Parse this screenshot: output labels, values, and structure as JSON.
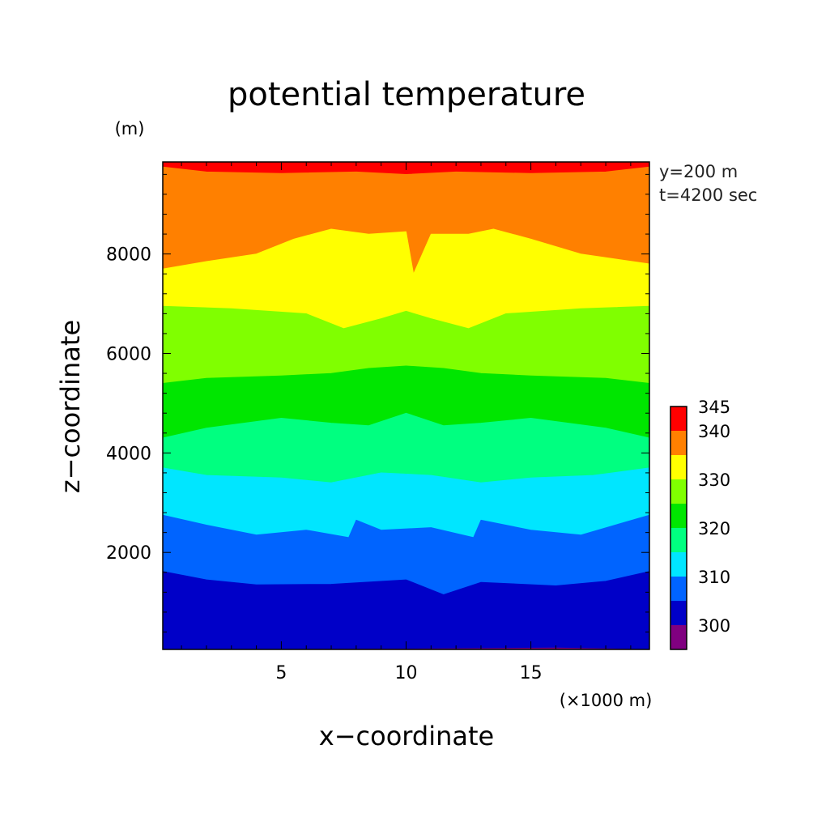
{
  "chart_data": {
    "type": "contour",
    "title": "potential temperature",
    "xlabel": "x−coordinate",
    "ylabel": "z−coordinate",
    "x_unit": "(×1000 m)",
    "y_unit": "(m)",
    "annotations": [
      "y=200 m",
      "t=4200 sec"
    ],
    "xlim": [
      0.25,
      19.75
    ],
    "ylim": [
      50,
      9850
    ],
    "x_ticks": [
      5,
      10,
      15
    ],
    "y_ticks": [
      2000,
      4000,
      6000,
      8000
    ],
    "legend_position": "right",
    "colorbar": {
      "labels": [
        "345",
        "340",
        "330",
        "320",
        "310",
        "300"
      ],
      "label_levels": [
        345,
        340,
        330,
        320,
        310,
        300
      ],
      "levels": [
        295,
        300,
        305,
        310,
        315,
        320,
        325,
        330,
        335,
        340,
        345
      ],
      "colors": [
        "#800080",
        "#0000c8",
        "#0064ff",
        "#00e6ff",
        "#00ff80",
        "#00e600",
        "#80ff00",
        "#ffff00",
        "#ff8000",
        "#ff0000"
      ]
    },
    "contour_boundaries_m": [
      {
        "level": 300,
        "profile": [
          [
            0.25,
            50
          ],
          [
            4,
            50
          ],
          [
            10,
            60
          ],
          [
            16,
            80
          ],
          [
            19.75,
            50
          ]
        ]
      },
      {
        "level": 305,
        "profile": [
          [
            0.25,
            1620
          ],
          [
            2,
            1450
          ],
          [
            4,
            1350
          ],
          [
            7,
            1360
          ],
          [
            10,
            1450
          ],
          [
            11.5,
            1150
          ],
          [
            13,
            1400
          ],
          [
            16,
            1330
          ],
          [
            18,
            1420
          ],
          [
            19.75,
            1620
          ]
        ]
      },
      {
        "level": 310,
        "profile": [
          [
            0.25,
            2750
          ],
          [
            2,
            2550
          ],
          [
            4,
            2350
          ],
          [
            6,
            2450
          ],
          [
            7.7,
            2300
          ],
          [
            8,
            2650
          ],
          [
            9,
            2450
          ],
          [
            11,
            2500
          ],
          [
            12.7,
            2300
          ],
          [
            13,
            2650
          ],
          [
            15,
            2450
          ],
          [
            17,
            2350
          ],
          [
            19.75,
            2750
          ]
        ]
      },
      {
        "level": 315,
        "profile": [
          [
            0.25,
            3700
          ],
          [
            2,
            3550
          ],
          [
            5,
            3500
          ],
          [
            7,
            3400
          ],
          [
            9,
            3600
          ],
          [
            11,
            3550
          ],
          [
            13,
            3400
          ],
          [
            15,
            3500
          ],
          [
            17.5,
            3550
          ],
          [
            19.75,
            3700
          ]
        ]
      },
      {
        "level": 320,
        "profile": [
          [
            0.25,
            4300
          ],
          [
            2,
            4500
          ],
          [
            5,
            4700
          ],
          [
            7,
            4600
          ],
          [
            8.5,
            4550
          ],
          [
            10,
            4800
          ],
          [
            11.5,
            4550
          ],
          [
            13,
            4600
          ],
          [
            15,
            4700
          ],
          [
            18,
            4500
          ],
          [
            19.75,
            4300
          ]
        ]
      },
      {
        "level": 325,
        "profile": [
          [
            0.25,
            5400
          ],
          [
            2,
            5500
          ],
          [
            5,
            5550
          ],
          [
            7,
            5600
          ],
          [
            8.5,
            5700
          ],
          [
            10,
            5750
          ],
          [
            11.5,
            5700
          ],
          [
            13,
            5600
          ],
          [
            15,
            5550
          ],
          [
            18,
            5500
          ],
          [
            19.75,
            5400
          ]
        ]
      },
      {
        "level": 330,
        "profile": [
          [
            0.25,
            6950
          ],
          [
            3,
            6900
          ],
          [
            6,
            6800
          ],
          [
            7.5,
            6500
          ],
          [
            9,
            6700
          ],
          [
            10,
            6850
          ],
          [
            11,
            6700
          ],
          [
            12.5,
            6500
          ],
          [
            14,
            6800
          ],
          [
            17,
            6900
          ],
          [
            19.75,
            6950
          ]
        ]
      },
      {
        "level": 335,
        "profile": [
          [
            0.25,
            7700
          ],
          [
            2,
            7850
          ],
          [
            4,
            8000
          ],
          [
            5.5,
            8300
          ],
          [
            7,
            8500
          ],
          [
            8.5,
            8400
          ],
          [
            10,
            8450
          ],
          [
            10.3,
            7600
          ],
          [
            11,
            8400
          ],
          [
            12.5,
            8400
          ],
          [
            13.5,
            8500
          ],
          [
            15,
            8300
          ],
          [
            17,
            8000
          ],
          [
            19.75,
            7800
          ]
        ]
      },
      {
        "level": 340,
        "profile": [
          [
            0.25,
            9750
          ],
          [
            2,
            9650
          ],
          [
            5,
            9620
          ],
          [
            8,
            9650
          ],
          [
            10,
            9600
          ],
          [
            12,
            9650
          ],
          [
            15,
            9620
          ],
          [
            18,
            9650
          ],
          [
            19.75,
            9750
          ]
        ]
      }
    ]
  }
}
